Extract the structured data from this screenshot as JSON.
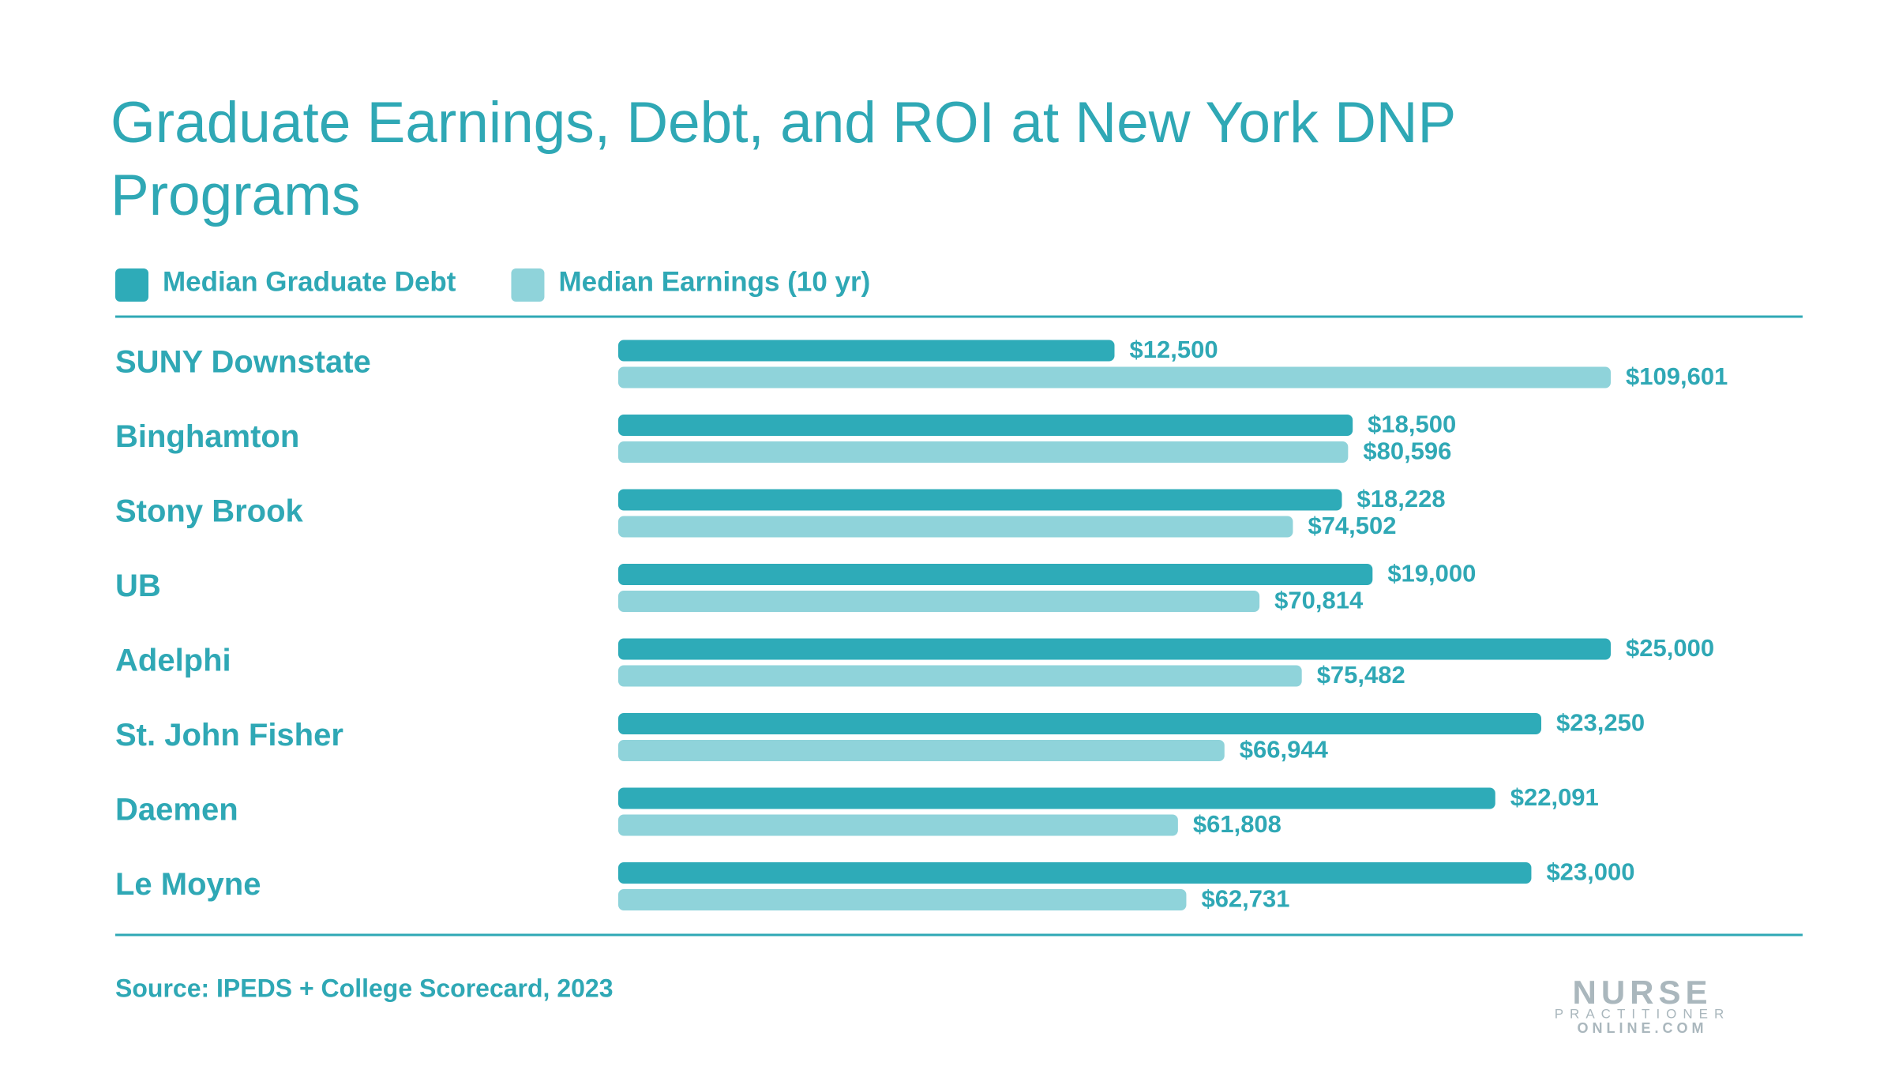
{
  "chart_data": {
    "type": "bar",
    "orientation": "horizontal",
    "title": "Graduate Earnings, Debt, and ROI at New York DNP Programs",
    "categories": [
      "SUNY Downstate",
      "Binghamton",
      "Stony Brook",
      "UB",
      "Adelphi",
      "St. John Fisher",
      "Daemen",
      "Le Moyne"
    ],
    "series": [
      {
        "name": "Median Graduate Debt",
        "color": "#2eabb8",
        "xlim": [
          0,
          25000
        ],
        "values": [
          12500,
          18500,
          18228,
          19000,
          25000,
          23250,
          22091,
          23000
        ],
        "value_labels": [
          "$12,500",
          "$18,500",
          "$18,228",
          "$19,000",
          "$25,000",
          "$23,250",
          "$22,091",
          "$23,000"
        ]
      },
      {
        "name": "Median Earnings (10 yr)",
        "color": "#8fd3da",
        "xlim": [
          0,
          109601
        ],
        "values": [
          109601,
          80596,
          74502,
          70814,
          75482,
          66944,
          61808,
          62731
        ],
        "value_labels": [
          "$109,601",
          "$80,596",
          "$74,502",
          "$70,814",
          "$75,482",
          "$66,944",
          "$61,808",
          "$62,731"
        ]
      }
    ],
    "source": "Source: IPEDS + College Scorecard, 2023",
    "logo": {
      "line1": "NURSE",
      "line2": "PRACTITIONER",
      "line3": "ONLINE.COM"
    }
  }
}
